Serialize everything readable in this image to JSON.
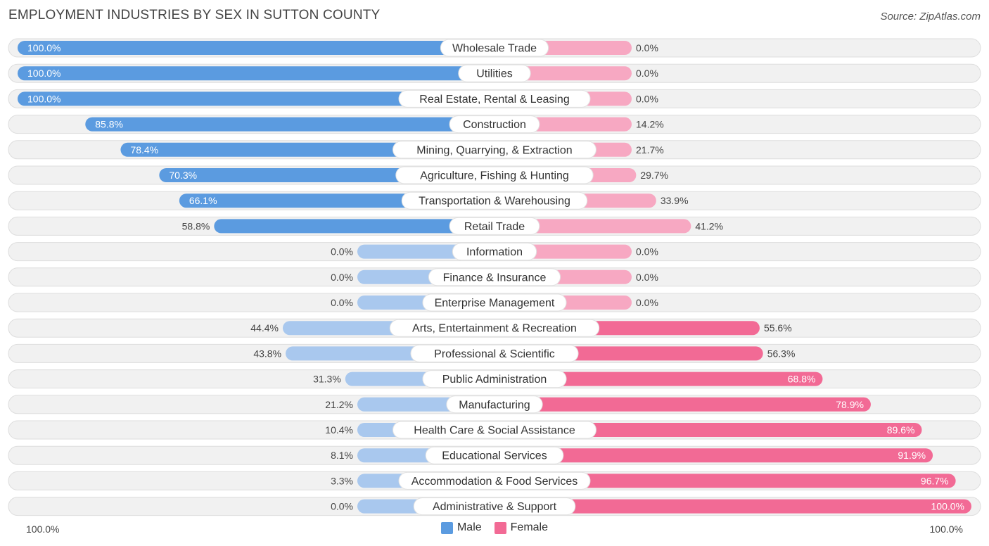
{
  "title": "EMPLOYMENT INDUSTRIES BY SEX IN SUTTON COUNTY",
  "source": "Source: ZipAtlas.com",
  "legend": {
    "male": "Male",
    "female": "Female"
  },
  "axis": {
    "left": "100.0%",
    "right": "100.0%"
  },
  "colors": {
    "male_dark": "#5b9be0",
    "male_light": "#a9c8ee",
    "female_dark": "#f26a95",
    "female_light": "#f7a8c2",
    "track": "#f0f0f0",
    "track_border": "#dcdcdc"
  },
  "chart_data": {
    "type": "bar",
    "orientation": "horizontal-diverging",
    "title": "EMPLOYMENT INDUSTRIES BY SEX IN SUTTON COUNTY",
    "xlim": [
      -100,
      100
    ],
    "categories": [
      "Wholesale Trade",
      "Utilities",
      "Real Estate, Rental & Leasing",
      "Construction",
      "Mining, Quarrying, & Extraction",
      "Agriculture, Fishing & Hunting",
      "Transportation & Warehousing",
      "Retail Trade",
      "Information",
      "Finance & Insurance",
      "Enterprise Management",
      "Arts, Entertainment & Recreation",
      "Professional & Scientific",
      "Public Administration",
      "Manufacturing",
      "Health Care & Social Assistance",
      "Educational Services",
      "Accommodation & Food Services",
      "Administrative & Support"
    ],
    "series": [
      {
        "name": "Male",
        "values": [
          100.0,
          100.0,
          100.0,
          85.8,
          78.4,
          70.3,
          66.1,
          58.8,
          0.0,
          0.0,
          0.0,
          44.4,
          43.8,
          31.3,
          21.2,
          10.4,
          8.1,
          3.3,
          0.0
        ],
        "labels": [
          "100.0%",
          "100.0%",
          "100.0%",
          "85.8%",
          "78.4%",
          "70.3%",
          "66.1%",
          "58.8%",
          "0.0%",
          "0.0%",
          "0.0%",
          "44.4%",
          "43.8%",
          "31.3%",
          "21.2%",
          "10.4%",
          "8.1%",
          "3.3%",
          "0.0%"
        ]
      },
      {
        "name": "Female",
        "values": [
          0.0,
          0.0,
          0.0,
          14.2,
          21.7,
          29.7,
          33.9,
          41.2,
          0.0,
          0.0,
          0.0,
          55.6,
          56.3,
          68.8,
          78.9,
          89.6,
          91.9,
          96.7,
          100.0
        ],
        "labels": [
          "0.0%",
          "0.0%",
          "0.0%",
          "14.2%",
          "21.7%",
          "29.7%",
          "33.9%",
          "41.2%",
          "0.0%",
          "0.0%",
          "0.0%",
          "55.6%",
          "56.3%",
          "68.8%",
          "78.9%",
          "89.6%",
          "91.9%",
          "96.7%",
          "100.0%"
        ]
      }
    ]
  }
}
